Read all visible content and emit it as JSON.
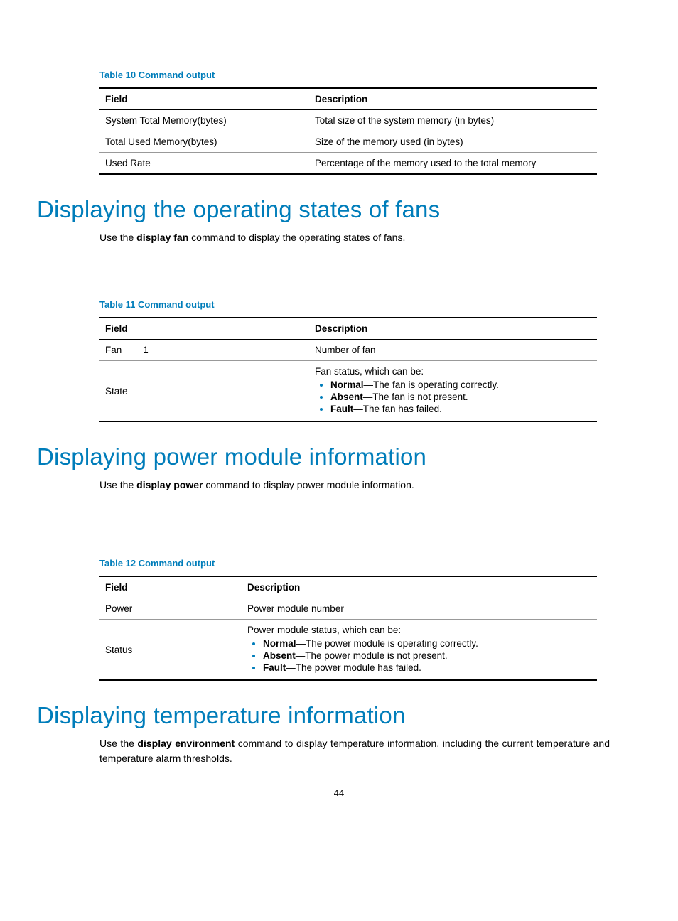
{
  "colors": {
    "accent": "#007dba",
    "text": "#000000",
    "rule_light": "#999999",
    "background": "#ffffff"
  },
  "page_number": "44",
  "table10": {
    "caption": "Table 10 Command output",
    "headers": {
      "field": "Field",
      "description": "Description"
    },
    "rows": [
      {
        "field": "System Total Memory(bytes)",
        "description": "Total size of the system memory (in bytes)"
      },
      {
        "field": "Total Used Memory(bytes)",
        "description": "Size of the memory used (in bytes)"
      },
      {
        "field": "Used Rate",
        "description": "Percentage of the memory used to the total memory"
      }
    ]
  },
  "section_fans": {
    "heading": "Displaying the operating states of fans",
    "intro_pre": "Use the ",
    "intro_cmd": "display fan",
    "intro_post": " command to display the operating states of fans."
  },
  "table11": {
    "caption": "Table 11 Command output",
    "headers": {
      "field": "Field",
      "description": "Description"
    },
    "row1": {
      "field": "Fan        1",
      "description": "Number of fan"
    },
    "row2": {
      "field": "State",
      "desc_intro": "Fan status, which can be:",
      "items": [
        {
          "term": "Normal",
          "text": "—The fan is operating correctly."
        },
        {
          "term": "Absent",
          "text": "—The fan is not present."
        },
        {
          "term": "Fault",
          "text": "—The fan has failed."
        }
      ]
    }
  },
  "section_power": {
    "heading": "Displaying power module information",
    "intro_pre": "Use the ",
    "intro_cmd": "display power",
    "intro_post": " command to display power module information."
  },
  "table12": {
    "caption": "Table 12 Command output",
    "headers": {
      "field": "Field",
      "description": "Description"
    },
    "row1": {
      "field": "Power",
      "description": "Power module number"
    },
    "row2": {
      "field": "Status",
      "desc_intro": "Power module status, which can be:",
      "items": [
        {
          "term": "Normal",
          "text": "—The power module is operating correctly."
        },
        {
          "term": "Absent",
          "text": "—The power module is not present."
        },
        {
          "term": "Fault",
          "text": "—The power module has failed."
        }
      ]
    }
  },
  "section_temp": {
    "heading": "Displaying temperature information",
    "intro_pre": "Use the ",
    "intro_cmd": "display environment",
    "intro_post": " command to display temperature information, including the current temperature and temperature alarm thresholds."
  }
}
